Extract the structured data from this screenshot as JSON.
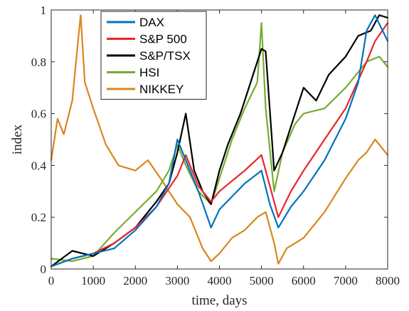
{
  "chart_data": {
    "type": "line",
    "title": "",
    "xlabel": "time, days",
    "ylabel": "index",
    "xlim": [
      0,
      8000
    ],
    "ylim": [
      0,
      1
    ],
    "xticks": [
      0,
      1000,
      2000,
      3000,
      4000,
      5000,
      6000,
      7000,
      8000
    ],
    "yticks": [
      0,
      0.2,
      0.4,
      0.6,
      0.8,
      1
    ],
    "ytick_labels": [
      "0",
      "0.2",
      "0.4",
      "0.6",
      "0.8",
      "1"
    ],
    "grid": false,
    "legend_position": "top-left",
    "series": [
      {
        "name": "DAX",
        "color": "#0072BD",
        "x": [
          0,
          500,
          1000,
          1500,
          2000,
          2500,
          2800,
          3000,
          3200,
          3500,
          3800,
          4000,
          4300,
          4600,
          5000,
          5200,
          5400,
          5700,
          6000,
          6500,
          7000,
          7300,
          7500,
          7700,
          8000
        ],
        "y": [
          0.01,
          0.04,
          0.06,
          0.08,
          0.15,
          0.24,
          0.33,
          0.5,
          0.42,
          0.3,
          0.16,
          0.23,
          0.28,
          0.33,
          0.38,
          0.25,
          0.16,
          0.24,
          0.3,
          0.42,
          0.58,
          0.72,
          0.92,
          0.98,
          0.88
        ]
      },
      {
        "name": "S&P 500",
        "color": "#E8262B",
        "x": [
          0,
          500,
          1000,
          1500,
          2000,
          2500,
          3000,
          3200,
          3500,
          3800,
          4000,
          4300,
          4600,
          5000,
          5200,
          5400,
          5700,
          6000,
          6500,
          7000,
          7500,
          7700,
          8000
        ],
        "y": [
          0.01,
          0.04,
          0.06,
          0.1,
          0.16,
          0.24,
          0.36,
          0.44,
          0.32,
          0.26,
          0.3,
          0.34,
          0.38,
          0.44,
          0.32,
          0.2,
          0.3,
          0.38,
          0.5,
          0.62,
          0.8,
          0.88,
          0.95
        ]
      },
      {
        "name": "S&P/TSX",
        "color": "#000000",
        "x": [
          0,
          500,
          1000,
          1500,
          2000,
          2500,
          2800,
          3000,
          3200,
          3400,
          3600,
          3800,
          4000,
          4200,
          4500,
          4800,
          5000,
          5100,
          5300,
          5500,
          5800,
          6000,
          6300,
          6600,
          7000,
          7300,
          7600,
          7800,
          8000
        ],
        "y": [
          0.01,
          0.07,
          0.05,
          0.1,
          0.16,
          0.26,
          0.33,
          0.45,
          0.6,
          0.38,
          0.3,
          0.25,
          0.38,
          0.48,
          0.6,
          0.75,
          0.85,
          0.84,
          0.38,
          0.45,
          0.6,
          0.7,
          0.65,
          0.75,
          0.82,
          0.9,
          0.92,
          0.98,
          0.97
        ]
      },
      {
        "name": "HSI",
        "color": "#77AC30",
        "x": [
          0,
          500,
          1000,
          1500,
          2000,
          2500,
          2800,
          3000,
          3200,
          3500,
          3800,
          4000,
          4300,
          4600,
          4900,
          5000,
          5100,
          5300,
          5500,
          5800,
          6000,
          6500,
          7000,
          7500,
          7800,
          8000
        ],
        "y": [
          0.04,
          0.03,
          0.05,
          0.14,
          0.22,
          0.3,
          0.38,
          0.48,
          0.4,
          0.3,
          0.25,
          0.35,
          0.5,
          0.62,
          0.72,
          0.95,
          0.62,
          0.3,
          0.45,
          0.56,
          0.6,
          0.62,
          0.7,
          0.8,
          0.82,
          0.78
        ]
      },
      {
        "name": "NIKKEY",
        "color": "#D9861E",
        "x": [
          0,
          150,
          300,
          500,
          650,
          700,
          800,
          1000,
          1300,
          1600,
          2000,
          2300,
          2600,
          2800,
          3000,
          3300,
          3600,
          3800,
          4000,
          4300,
          4600,
          4900,
          5100,
          5300,
          5400,
          5600,
          6000,
          6500,
          7000,
          7300,
          7500,
          7700,
          8000
        ],
        "y": [
          0.42,
          0.58,
          0.52,
          0.65,
          0.9,
          0.98,
          0.72,
          0.62,
          0.48,
          0.4,
          0.38,
          0.42,
          0.35,
          0.3,
          0.25,
          0.2,
          0.08,
          0.03,
          0.06,
          0.12,
          0.15,
          0.2,
          0.22,
          0.1,
          0.02,
          0.08,
          0.12,
          0.22,
          0.35,
          0.42,
          0.45,
          0.5,
          0.44
        ]
      }
    ]
  }
}
